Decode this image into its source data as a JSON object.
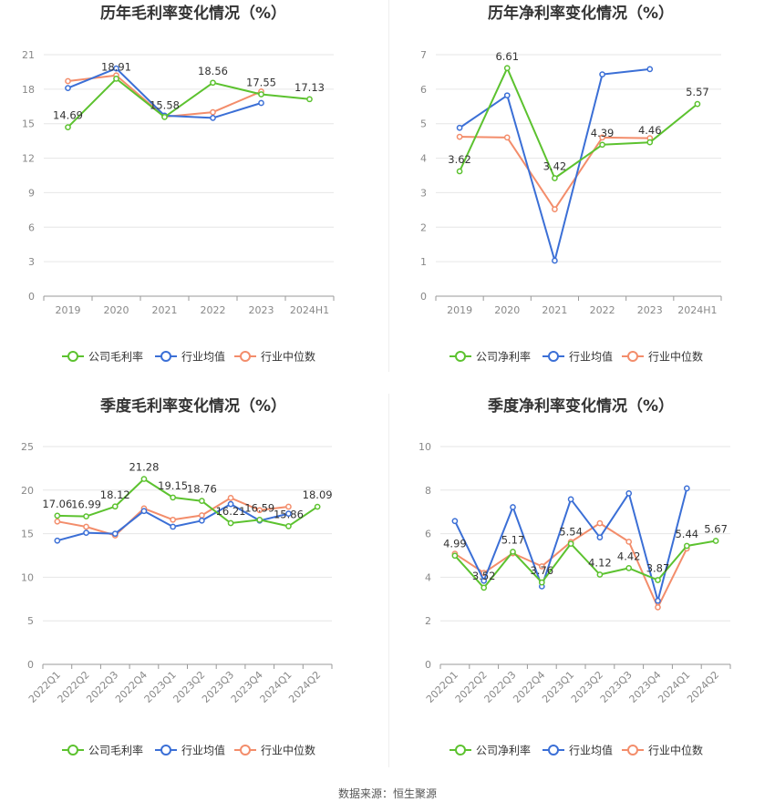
{
  "colors": {
    "company": "#5cc22f",
    "avg": "#3b6fd6",
    "median": "#f38d6b",
    "grid": "#e6e6e6",
    "axis": "#999999"
  },
  "source_label": "数据来源：恒生聚源",
  "chart_data": [
    {
      "id": "annual-gross",
      "type": "line",
      "title": "历年毛利率变化情况（%）",
      "categories": [
        "2019",
        "2020",
        "2021",
        "2022",
        "2023",
        "2024H1"
      ],
      "ylim": [
        0,
        21
      ],
      "yticks": [
        0,
        3,
        6,
        9,
        12,
        15,
        18,
        21
      ],
      "series": [
        {
          "name": "公司毛利率",
          "key": "company",
          "values": [
            14.69,
            18.91,
            15.58,
            18.56,
            17.55,
            17.13
          ]
        },
        {
          "name": "行业均值",
          "key": "avg",
          "values": [
            18.1,
            19.8,
            15.7,
            15.5,
            16.8,
            null
          ]
        },
        {
          "name": "行业中位数",
          "key": "median",
          "values": [
            18.7,
            19.2,
            15.6,
            16.0,
            17.8,
            null
          ]
        }
      ],
      "labels": [
        "14.69",
        "18.91",
        "15.58",
        "18.56",
        "17.55",
        "17.13"
      ]
    },
    {
      "id": "annual-net",
      "type": "line",
      "title": "历年净利率变化情况（%）",
      "categories": [
        "2019",
        "2020",
        "2021",
        "2022",
        "2023",
        "2024H1"
      ],
      "ylim": [
        0,
        7
      ],
      "yticks": [
        0,
        1,
        2,
        3,
        4,
        5,
        6,
        7
      ],
      "series": [
        {
          "name": "公司净利率",
          "key": "company",
          "values": [
            3.62,
            6.61,
            3.42,
            4.39,
            4.46,
            5.57
          ]
        },
        {
          "name": "行业均值",
          "key": "avg",
          "values": [
            4.88,
            5.82,
            1.03,
            6.43,
            6.58,
            null
          ]
        },
        {
          "name": "行业中位数",
          "key": "median",
          "values": [
            4.62,
            4.6,
            2.52,
            4.6,
            4.58,
            null
          ]
        }
      ],
      "labels": [
        "3.62",
        "6.61",
        "3.42",
        "4.39",
        "4.46",
        "5.57"
      ]
    },
    {
      "id": "quarter-gross",
      "type": "line",
      "title": "季度毛利率变化情况（%）",
      "categories": [
        "2022Q1",
        "2022Q2",
        "2022Q3",
        "2022Q4",
        "2023Q1",
        "2023Q2",
        "2023Q3",
        "2023Q4",
        "2024Q1",
        "2024Q2"
      ],
      "ylim": [
        0,
        25
      ],
      "yticks": [
        0,
        5,
        10,
        15,
        20,
        25
      ],
      "series": [
        {
          "name": "公司毛利率",
          "key": "company",
          "values": [
            17.06,
            16.99,
            18.12,
            21.28,
            19.15,
            18.76,
            16.21,
            16.59,
            15.86,
            18.09
          ]
        },
        {
          "name": "行业均值",
          "key": "avg",
          "values": [
            14.2,
            15.1,
            15.0,
            17.6,
            15.8,
            16.5,
            18.4,
            16.5,
            17.3,
            null
          ]
        },
        {
          "name": "行业中位数",
          "key": "median",
          "values": [
            16.4,
            15.8,
            14.8,
            17.9,
            16.6,
            17.1,
            19.1,
            17.7,
            18.1,
            null
          ]
        }
      ],
      "labels": [
        "17.06",
        "16.99",
        "18.12",
        "21.28",
        "19.15",
        "18.76",
        "16.21",
        "16.59",
        "15.86",
        "18.09"
      ]
    },
    {
      "id": "quarter-net",
      "type": "line",
      "title": "季度净利率变化情况（%）",
      "categories": [
        "2022Q1",
        "2022Q2",
        "2022Q3",
        "2022Q4",
        "2023Q1",
        "2023Q2",
        "2023Q3",
        "2023Q4",
        "2024Q1",
        "2024Q2"
      ],
      "ylim": [
        0,
        10
      ],
      "yticks": [
        0,
        2,
        4,
        6,
        8,
        10
      ],
      "series": [
        {
          "name": "公司净利率",
          "key": "company",
          "values": [
            4.99,
            3.52,
            5.17,
            3.76,
            5.54,
            4.12,
            4.42,
            3.87,
            5.44,
            5.67
          ]
        },
        {
          "name": "行业均值",
          "key": "avg",
          "values": [
            6.58,
            3.84,
            7.22,
            3.58,
            7.58,
            5.83,
            7.85,
            2.92,
            8.08,
            null
          ]
        },
        {
          "name": "行业中位数",
          "key": "median",
          "values": [
            5.08,
            4.2,
            5.1,
            4.5,
            5.62,
            6.48,
            5.63,
            2.62,
            5.32,
            null
          ]
        }
      ],
      "labels": [
        "4.99",
        "3.52",
        "5.17",
        "3.76",
        "5.54",
        "4.12",
        "4.42",
        "3.87",
        "5.44",
        "5.67"
      ]
    }
  ]
}
